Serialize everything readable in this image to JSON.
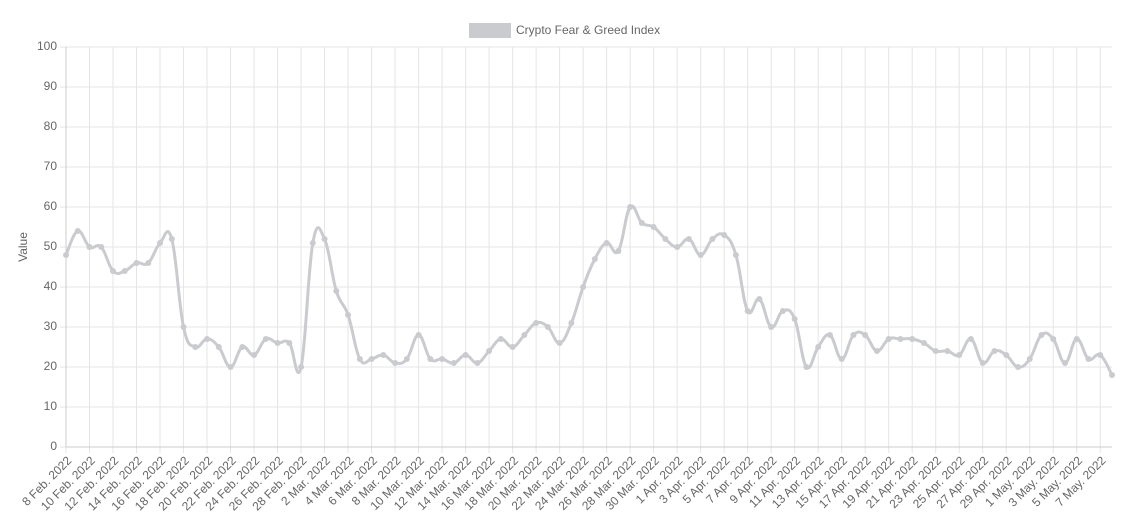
{
  "chart_data": {
    "type": "line",
    "legend_label": "Crypto Fear & Greed Index",
    "y_label": "Value",
    "categories": [
      "8 Feb. 2022",
      null,
      "10 Feb. 2022",
      null,
      "12 Feb. 2022",
      null,
      "14 Feb. 2022",
      null,
      "16 Feb. 2022",
      null,
      "18 Feb. 2022",
      null,
      "20 Feb. 2022",
      null,
      "22 Feb. 2022",
      null,
      "24 Feb. 2022",
      null,
      "26 Feb. 2022",
      null,
      "28 Feb. 2022",
      null,
      "2 Mar. 2022",
      null,
      "4 Mar. 2022",
      null,
      "6 Mar. 2022",
      null,
      "8 Mar. 2022",
      null,
      "10 Mar. 2022",
      null,
      "12 Mar. 2022",
      null,
      "14 Mar. 2022",
      null,
      "16 Mar. 2022",
      null,
      "18 Mar. 2022",
      null,
      "20 Mar. 2022",
      null,
      "22 Mar. 2022",
      null,
      "24 Mar. 2022",
      null,
      "26 Mar. 2022",
      null,
      "28 Mar. 2022",
      null,
      "30 Mar. 2022",
      null,
      "1 Apr. 2022",
      null,
      "3 Apr. 2022",
      null,
      "5 Apr. 2022",
      null,
      "7 Apr. 2022",
      null,
      "9 Apr. 2022",
      null,
      "11 Apr. 2022",
      null,
      "13 Apr. 2022",
      null,
      "15 Apr. 2022",
      null,
      "17 Apr. 2022",
      null,
      "19 Apr. 2022",
      null,
      "21 Apr. 2022",
      null,
      "23 Apr. 2022",
      null,
      "25 Apr. 2022",
      null,
      "27 Apr. 2022",
      null,
      "29 Apr. 2022",
      null,
      "1 May. 2022",
      null,
      "3 May. 2022",
      null,
      "5 May. 2022",
      null,
      "7 May. 2022",
      null
    ],
    "values": [
      48,
      54,
      50,
      50,
      44,
      44,
      46,
      46,
      51,
      52,
      30,
      25,
      27,
      25,
      20,
      25,
      23,
      27,
      26,
      26,
      20,
      51,
      52,
      39,
      33,
      22,
      22,
      23,
      21,
      22,
      28,
      22,
      22,
      21,
      23,
      21,
      24,
      27,
      25,
      28,
      31,
      30,
      26,
      31,
      40,
      47,
      51,
      49,
      60,
      56,
      55,
      52,
      50,
      52,
      48,
      52,
      53,
      48,
      34,
      37,
      30,
      34,
      32,
      20,
      25,
      28,
      22,
      28,
      28,
      24,
      27,
      27,
      27,
      26,
      24,
      24,
      23,
      27,
      21,
      24,
      23,
      20,
      22,
      28,
      27,
      21,
      27,
      22,
      23,
      18
    ],
    "color": "#c9cbcf",
    "ylim": [
      0,
      100
    ],
    "yticks": [
      0,
      10,
      20,
      30,
      40,
      50,
      60,
      70,
      80,
      90,
      100
    ],
    "grid": true
  }
}
